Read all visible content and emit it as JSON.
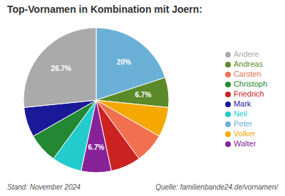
{
  "chart_data": {
    "type": "pie",
    "title": "Top-Vornamen in Kombination mit Joern:",
    "categories": [
      "Peter",
      "Andreas",
      "Volker",
      "Carsten",
      "Friedrich",
      "Walter",
      "Neil",
      "Christoph",
      "Mark",
      "Andere"
    ],
    "values": [
      20.0,
      6.7,
      6.7,
      6.7,
      6.7,
      6.7,
      6.7,
      6.7,
      6.7,
      26.7
    ],
    "value_labels": [
      "20%",
      "6.7%",
      null,
      null,
      null,
      "6.7%",
      null,
      null,
      null,
      "26.7%"
    ],
    "data_labels": true,
    "colors": [
      "#6aafd6",
      "#5a8a2a",
      "#f5a800",
      "#f07050",
      "#cc2222",
      "#882299",
      "#22cccc",
      "#228833",
      "#1a1a99",
      "#aaaaaa"
    ],
    "legend": "right",
    "annotations": [
      "Stand: November 2024",
      "Quelle: familienbande24.de/vornamen/"
    ]
  }
}
